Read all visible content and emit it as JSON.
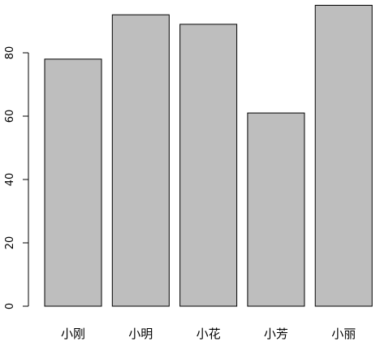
{
  "chart_data": {
    "type": "bar",
    "categories": [
      "小刚",
      "小明",
      "小花",
      "小芳",
      "小丽"
    ],
    "values": [
      78,
      92,
      89,
      61,
      95
    ],
    "title": "",
    "xlabel": "",
    "ylabel": "",
    "ylim": [
      0,
      95
    ],
    "yticks": [
      0,
      20,
      40,
      60,
      80
    ],
    "grid": false,
    "colors": {
      "bar_fill": "#bebebe",
      "bar_stroke": "#000000",
      "axis": "#000000",
      "text": "#000000"
    }
  }
}
